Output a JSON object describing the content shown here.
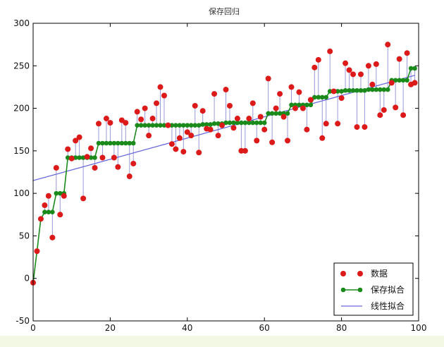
{
  "chart_data": {
    "type": "scatter",
    "title": "保存回归",
    "xlabel": "",
    "ylabel": "",
    "xlim": [
      0,
      100
    ],
    "ylim": [
      -50,
      300
    ],
    "xticks": [
      "0",
      "20",
      "40",
      "60",
      "80",
      "100"
    ],
    "yticks": [
      "-50",
      "0",
      "50",
      "100",
      "150",
      "200",
      "250",
      "300"
    ],
    "grid": false,
    "legend_position": "bottom-right",
    "colors": {
      "data": "#dd1a1a",
      "fit": "#1a8a1a",
      "linear": "#6b6bdc",
      "residual": "#9a9ad8"
    },
    "legend": [
      {
        "label": "数据",
        "kind": "points"
      },
      {
        "label": "保存拟合",
        "kind": "line-markers"
      },
      {
        "label": "线性拟合",
        "kind": "line"
      }
    ],
    "x": [
      0,
      1,
      2,
      3,
      4,
      5,
      6,
      7,
      8,
      9,
      10,
      11,
      12,
      13,
      14,
      15,
      16,
      17,
      18,
      19,
      20,
      21,
      22,
      23,
      24,
      25,
      26,
      27,
      28,
      29,
      30,
      31,
      32,
      33,
      34,
      35,
      36,
      37,
      38,
      39,
      40,
      41,
      42,
      43,
      44,
      45,
      46,
      47,
      48,
      49,
      50,
      51,
      52,
      53,
      54,
      55,
      56,
      57,
      58,
      59,
      60,
      61,
      62,
      63,
      64,
      65,
      66,
      67,
      68,
      69,
      70,
      71,
      72,
      73,
      74,
      75,
      76,
      77,
      78,
      79,
      80,
      81,
      82,
      83,
      84,
      85,
      86,
      87,
      88,
      89,
      90,
      91,
      92,
      93,
      94,
      95,
      96,
      97,
      98,
      99
    ],
    "series": [
      {
        "name": "数据",
        "values": [
          -5,
          32,
          70,
          86,
          97,
          48,
          130,
          75,
          97,
          152,
          141,
          162,
          166,
          94,
          143,
          153,
          130,
          182,
          142,
          188,
          183,
          142,
          131,
          186,
          183,
          120,
          135,
          196,
          187,
          200,
          168,
          188,
          206,
          225,
          215,
          180,
          158,
          152,
          165,
          149,
          172,
          168,
          203,
          148,
          197,
          176,
          175,
          217,
          168,
          180,
          222,
          203,
          177,
          188,
          150,
          150,
          188,
          206,
          162,
          190,
          175,
          235,
          160,
          200,
          217,
          190,
          162,
          225,
          200,
          219,
          200,
          175,
          210,
          248,
          257,
          165,
          182,
          267,
          220,
          182,
          212,
          253,
          245,
          240,
          178,
          240,
          178,
          250,
          228,
          252,
          192,
          198,
          275,
          230,
          201,
          258,
          192,
          265,
          228,
          230
        ]
      },
      {
        "name": "保存拟合",
        "values": [
          -5,
          32,
          70,
          78,
          78,
          78,
          100,
          100,
          100,
          142,
          142,
          142,
          142,
          142,
          142,
          142,
          142,
          159,
          159,
          159,
          159,
          159,
          159,
          159,
          159,
          159,
          159,
          180,
          180,
          180,
          180,
          180,
          180,
          180,
          180,
          180,
          180,
          180,
          180,
          180,
          180,
          180,
          180,
          180,
          181,
          181,
          181,
          182,
          182,
          182,
          183,
          183,
          183,
          183,
          183,
          183,
          183,
          183,
          183,
          183,
          183,
          194,
          194,
          194,
          194,
          194,
          194,
          204,
          204,
          204,
          204,
          204,
          204,
          213,
          213,
          213,
          213,
          220,
          220,
          220,
          220,
          221,
          221,
          221,
          221,
          221,
          221,
          222,
          222,
          222,
          222,
          222,
          222,
          233,
          233,
          233,
          233,
          233,
          247,
          247
        ]
      },
      {
        "name": "线性拟合",
        "values": [
          115,
          116.3,
          117.5,
          118.8,
          120.0,
          121.3,
          122.5,
          123.8,
          125.0,
          126.3,
          127.5,
          128.8,
          130.0,
          131.3,
          132.5,
          133.8,
          135.0,
          136.3,
          137.5,
          138.8,
          140.0,
          141.3,
          142.5,
          143.8,
          145.0,
          146.3,
          147.5,
          148.8,
          150.0,
          151.3,
          152.5,
          153.8,
          155.0,
          156.3,
          157.5,
          158.8,
          160.0,
          161.3,
          162.5,
          163.8,
          165.0,
          166.3,
          167.5,
          168.8,
          170.0,
          171.3,
          172.5,
          173.8,
          175.0,
          176.3,
          177.5,
          178.8,
          180.0,
          181.3,
          182.5,
          183.8,
          185.0,
          186.3,
          187.5,
          188.8,
          190.0,
          191.3,
          192.5,
          193.8,
          195.0,
          196.3,
          197.5,
          198.8,
          200.0,
          201.3,
          202.5,
          203.8,
          205.0,
          206.3,
          207.5,
          208.8,
          210.0,
          211.3,
          212.5,
          213.8,
          215.0,
          216.3,
          217.5,
          218.8,
          220.0,
          221.3,
          222.5,
          223.8,
          225.0,
          226.3,
          227.5,
          228.8,
          230.0,
          231.3,
          232.5,
          233.8,
          235.0,
          236.3,
          237.5,
          238.8
        ]
      }
    ]
  }
}
